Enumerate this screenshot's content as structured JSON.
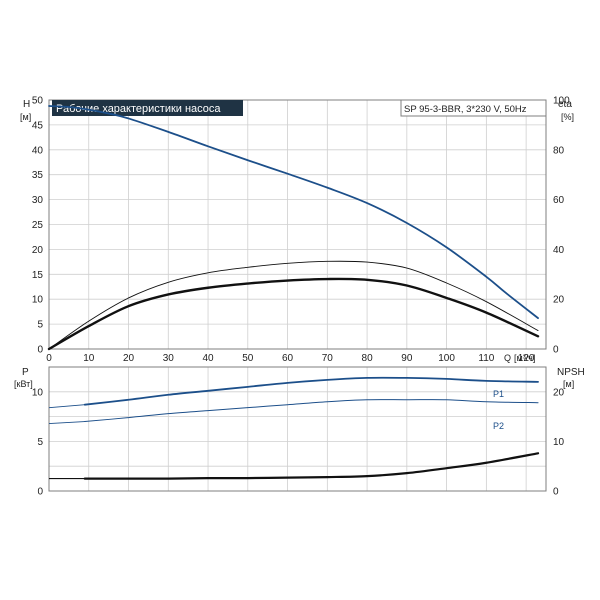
{
  "chart_data": [
    {
      "type": "line",
      "title": "Рабочие характеристики насоса",
      "model": "SP 95-3-BBR, 3*230 V, 50Hz",
      "left_axis": {
        "label": "H",
        "unit": "[м]",
        "range": [
          0,
          50
        ],
        "ticks": [
          "0",
          "5",
          "10",
          "15",
          "20",
          "25",
          "30",
          "35",
          "40",
          "45",
          "50"
        ]
      },
      "right_axis": {
        "label": "eta",
        "unit": "[%]",
        "range": [
          0,
          100
        ],
        "ticks": [
          "0",
          "20",
          "40",
          "60",
          "80",
          "100"
        ]
      },
      "x_axis": {
        "label": "Q",
        "unit": "[м³/ч]",
        "range": [
          0,
          125
        ],
        "ticks": [
          "0",
          "10",
          "20",
          "30",
          "40",
          "50",
          "60",
          "70",
          "80",
          "90",
          "100",
          "110",
          "120"
        ]
      },
      "grid": true,
      "colors": {
        "head": "#1c4f8a",
        "efficiency": "#111111",
        "title_bg": "#1f3344"
      },
      "series": [
        {
          "key": "head",
          "axis": "left",
          "x": [
            0,
            5,
            9,
            15,
            20,
            30,
            40,
            50,
            60,
            70,
            80,
            90,
            100,
            110,
            115,
            123
          ],
          "values": [
            48.8,
            48.6,
            48.2,
            47.3,
            46.3,
            43.6,
            40.7,
            37.9,
            35.2,
            32.4,
            29.3,
            25.3,
            20.4,
            14.5,
            11.2,
            6.2
          ]
        },
        {
          "key": "eta_thin",
          "axis": "right",
          "x": [
            0,
            10,
            20,
            30,
            40,
            50,
            60,
            70,
            80,
            90,
            100,
            110,
            123
          ],
          "values": [
            0,
            11.2,
            20.5,
            26.8,
            30.6,
            32.8,
            34.4,
            35.2,
            34.9,
            32.5,
            26.5,
            19,
            7.4
          ]
        },
        {
          "key": "eta_bold",
          "axis": "right",
          "x": [
            0,
            10,
            20,
            30,
            40,
            50,
            60,
            70,
            80,
            90,
            100,
            110,
            123
          ],
          "values": [
            0,
            9.2,
            17.2,
            21.9,
            24.6,
            26.3,
            27.5,
            28.1,
            27.8,
            25.5,
            20.5,
            14.6,
            5.1
          ]
        }
      ]
    },
    {
      "type": "line",
      "left_axis": {
        "label": "P",
        "unit": "[кВт]",
        "range": [
          0,
          12.5
        ],
        "ticks": [
          "0",
          "5",
          "10"
        ]
      },
      "right_axis": {
        "label": "NPSH",
        "unit": "[м]",
        "range": [
          0,
          25
        ],
        "ticks": [
          "0",
          "10",
          "20"
        ]
      },
      "x_axis": {
        "range": [
          0,
          125
        ]
      },
      "grid": true,
      "colors": {
        "p1": "#1c4f8a",
        "p2": "#1c4f8a",
        "npsh": "#111111"
      },
      "series": [
        {
          "name": "P1",
          "key": "p1",
          "axis": "left",
          "x": [
            0,
            9,
            20,
            30,
            40,
            50,
            60,
            70,
            80,
            90,
            100,
            110,
            123
          ],
          "values": [
            8.4,
            8.7,
            9.2,
            9.7,
            10.1,
            10.5,
            10.9,
            11.2,
            11.4,
            11.4,
            11.3,
            11.1,
            11.0
          ]
        },
        {
          "name": "P2",
          "key": "p2",
          "axis": "left",
          "x": [
            0,
            9,
            20,
            30,
            40,
            50,
            60,
            70,
            80,
            90,
            100,
            110,
            123
          ],
          "values": [
            6.8,
            7.0,
            7.4,
            7.8,
            8.1,
            8.4,
            8.7,
            9.0,
            9.2,
            9.2,
            9.2,
            9.0,
            8.9
          ]
        },
        {
          "key": "npsh",
          "axis": "right",
          "x": [
            0,
            9,
            20,
            30,
            40,
            50,
            60,
            70,
            80,
            90,
            100,
            110,
            123
          ],
          "values": [
            2.5,
            2.5,
            2.5,
            2.5,
            2.6,
            2.6,
            2.7,
            2.8,
            3.0,
            3.6,
            4.6,
            5.7,
            7.6
          ]
        }
      ]
    }
  ]
}
